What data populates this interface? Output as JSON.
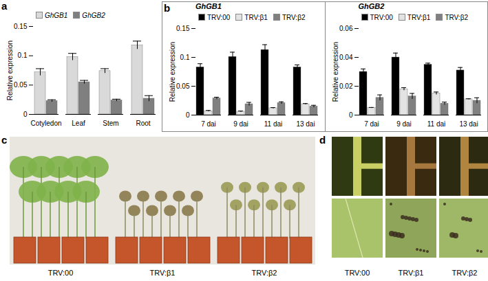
{
  "chart_data": [
    {
      "panel": "a",
      "type": "bar",
      "categories": [
        "Cotyledon",
        "Leaf",
        "Stem",
        "Root"
      ],
      "y_label": "Relative expression",
      "ylim": [
        0,
        0.15
      ],
      "yticks": [
        0,
        0.05,
        0.1,
        0.15
      ],
      "legend": "top",
      "grid": false,
      "series": [
        {
          "name": "GhGB1",
          "color": "#d9d9d9",
          "values": [
            0.072,
            0.098,
            0.074,
            0.118
          ],
          "errors": [
            0.006,
            0.006,
            0.004,
            0.007
          ]
        },
        {
          "name": "GhGB2",
          "color": "#7f7f7f",
          "values": [
            0.023,
            0.055,
            0.024,
            0.027
          ],
          "errors": [
            0.002,
            0.003,
            0.002,
            0.005
          ]
        }
      ]
    },
    {
      "panel": "b",
      "type": "bar",
      "title": "GhGB1",
      "categories": [
        "7 dai",
        "9 dai",
        "11 dai",
        "13 dai"
      ],
      "y_label": "Relative expression",
      "ylim": [
        0,
        0.15
      ],
      "yticks": [
        0,
        0.05,
        0.1,
        0.15
      ],
      "legend": "top",
      "grid": false,
      "series": [
        {
          "name": "TRV:00",
          "color": "#000000",
          "values": [
            0.083,
            0.101,
            0.113,
            0.083
          ],
          "errors": [
            0.006,
            0.008,
            0.009,
            0.004
          ]
        },
        {
          "name": "TRV:β1",
          "color": "#e3e3e3",
          "values": [
            0.007,
            0.006,
            0.012,
            0.019
          ],
          "errors": [
            0.001,
            0.001,
            0.001,
            0.001
          ]
        },
        {
          "name": "TRV:β2",
          "color": "#808080",
          "values": [
            0.029,
            0.019,
            0.021,
            0.015
          ],
          "errors": [
            0.002,
            0.003,
            0.002,
            0.002
          ]
        }
      ]
    },
    {
      "type": "bar",
      "title": "GhGB2",
      "categories": [
        "7 dai",
        "9 dai",
        "11 dai",
        "13 dai"
      ],
      "y_label": "Relative expression",
      "ylim": [
        0,
        0.06
      ],
      "yticks": [
        0,
        0.02,
        0.04,
        0.06
      ],
      "legend": "top",
      "grid": false,
      "series": [
        {
          "name": "TRV:00",
          "color": "#000000",
          "values": [
            0.03,
            0.04,
            0.035,
            0.031
          ],
          "errors": [
            0.002,
            0.003,
            0.001,
            0.002
          ]
        },
        {
          "name": "TRV:β1",
          "color": "#e3e3e3",
          "values": [
            0.005,
            0.018,
            0.015,
            0.011
          ],
          "errors": [
            0.0003,
            0.001,
            0.001,
            0.0003
          ]
        },
        {
          "name": "TRV:β2",
          "color": "#808080",
          "values": [
            0.012,
            0.013,
            0.008,
            0.01
          ],
          "errors": [
            0.002,
            0.002,
            0.001,
            0.002
          ]
        }
      ]
    }
  ],
  "photo_panels": [
    {
      "panel": "c",
      "captions": [
        "TRV:00",
        "TRV:β1",
        "TRV:β2"
      ]
    },
    {
      "panel": "d",
      "captions": [
        "TRV:00",
        "TRV:β1",
        "TRV:β2"
      ]
    }
  ]
}
